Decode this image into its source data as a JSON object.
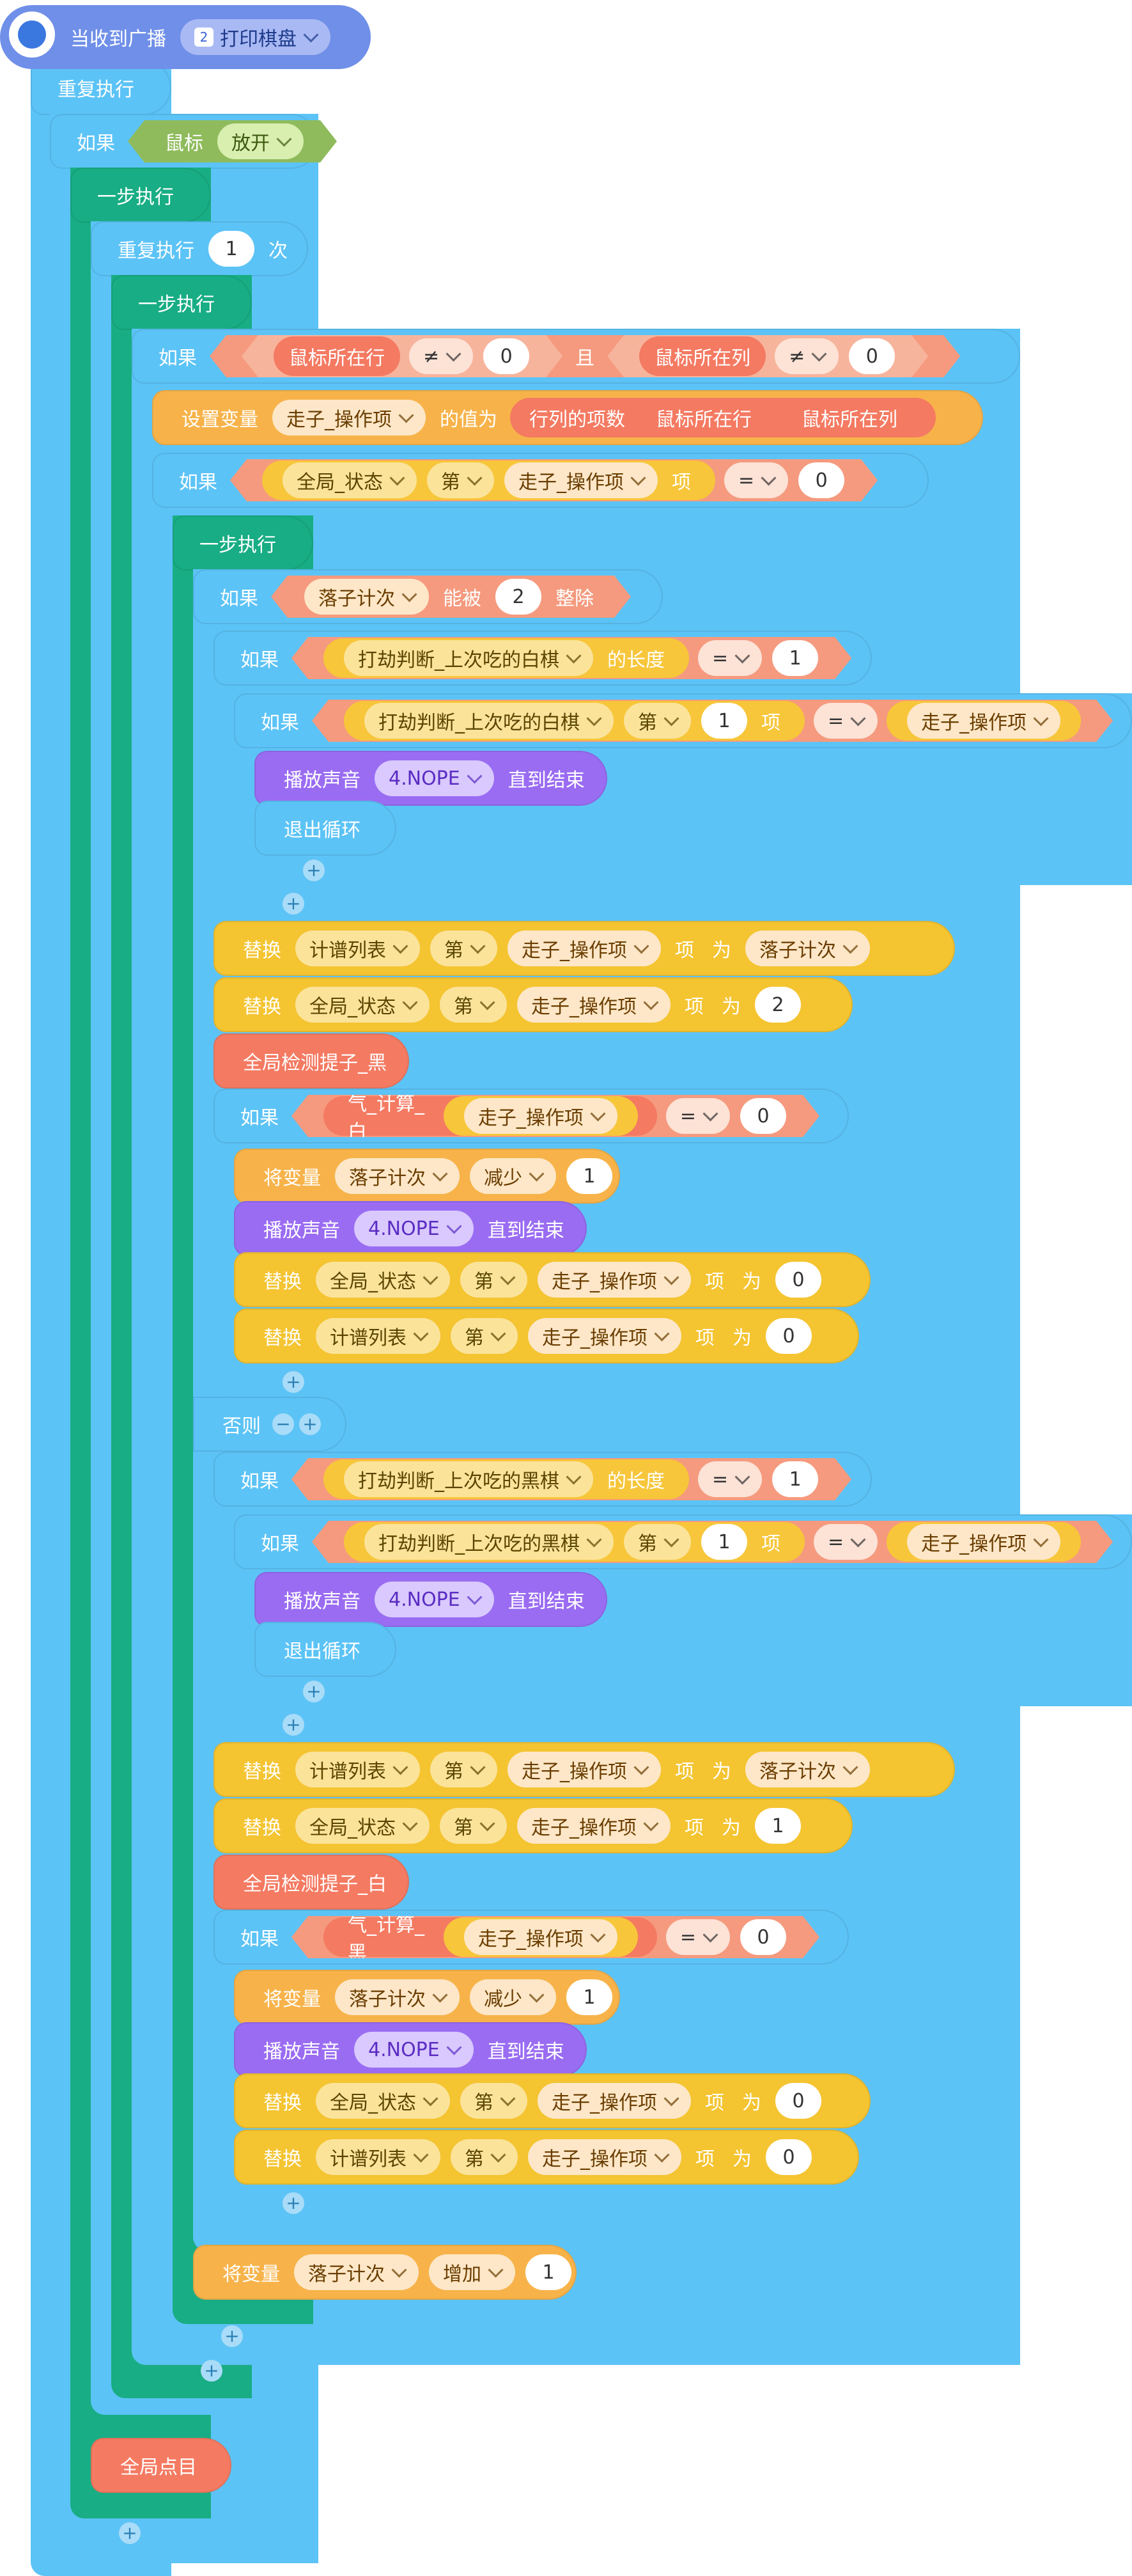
{
  "hat": {
    "label": "当收到广播",
    "message_icon": "2",
    "message": "打印棋盘"
  },
  "forever": {
    "label": "重复执行"
  },
  "if_mouse": {
    "if": "如果",
    "mouse": "鼠标",
    "state": "放开"
  },
  "step1": {
    "label": "一步执行"
  },
  "repeat": {
    "label": "重复执行",
    "count": "1",
    "unit": "次"
  },
  "step2": {
    "label": "一步执行"
  },
  "if_pos": {
    "if": "如果",
    "a": "鼠标所在行",
    "op": "≠",
    "v": "0",
    "and": "且",
    "b": "鼠标所在列",
    "op2": "≠",
    "v2": "0"
  },
  "set_var": {
    "label": "设置变量",
    "var": "走子_操作项",
    "to": "的值为",
    "fn": "行列的项数",
    "a": "鼠标所在行",
    "b": "鼠标所在列"
  },
  "if_state": {
    "if": "如果",
    "list": "全局_状态",
    "nth": "第",
    "item": "走子_操作项",
    "xiang": "项",
    "op": "=",
    "v": "0"
  },
  "step3": {
    "label": "一步执行"
  },
  "if_div": {
    "if": "如果",
    "var": "落子计次",
    "can": "能被",
    "n": "2",
    "div": "整除"
  },
  "white_len": {
    "if": "如果",
    "list": "打劫判断_上次吃的白棋",
    "len": "的长度",
    "op": "=",
    "v": "1"
  },
  "white_item": {
    "if": "如果",
    "list": "打劫判断_上次吃的白棋",
    "nth": "第",
    "n": "1",
    "xiang": "项",
    "op": "=",
    "var": "走子_操作项"
  },
  "sound1": {
    "label": "播放声音",
    "sound": "4.NOPE",
    "until": "直到结束"
  },
  "break1": {
    "label": "退出循环"
  },
  "replace1": {
    "label": "替换",
    "list": "计谱列表",
    "nth": "第",
    "item": "走子_操作项",
    "xiang": "项",
    "wei": "为",
    "val": "落子计次"
  },
  "replace2": {
    "label": "替换",
    "list": "全局_状态",
    "nth": "第",
    "item": "走子_操作项",
    "xiang": "项",
    "wei": "为",
    "val": "2"
  },
  "detect_black": {
    "label": "全局检测提子_黑"
  },
  "qi_white": {
    "if": "如果",
    "fn": "气_计算_白",
    "arg": "走子_操作项",
    "op": "=",
    "v": "0"
  },
  "dec1": {
    "label": "将变量",
    "var": "落子计次",
    "mode": "减少",
    "v": "1"
  },
  "sound2": {
    "label": "播放声音",
    "sound": "4.NOPE",
    "until": "直到结束"
  },
  "replace3": {
    "label": "替换",
    "list": "全局_状态",
    "nth": "第",
    "item": "走子_操作项",
    "xiang": "项",
    "wei": "为",
    "val": "0"
  },
  "replace4": {
    "label": "替换",
    "list": "计谱列表",
    "nth": "第",
    "item": "走子_操作项",
    "xiang": "项",
    "wei": "为",
    "val": "0"
  },
  "else": {
    "label": "否则",
    "minus": "−",
    "plus": "+"
  },
  "black_len": {
    "if": "如果",
    "list": "打劫判断_上次吃的黑棋",
    "len": "的长度",
    "op": "=",
    "v": "1"
  },
  "black_item": {
    "if": "如果",
    "list": "打劫判断_上次吃的黑棋",
    "nth": "第",
    "n": "1",
    "xiang": "项",
    "op": "=",
    "var": "走子_操作项"
  },
  "sound3": {
    "label": "播放声音",
    "sound": "4.NOPE",
    "until": "直到结束"
  },
  "break2": {
    "label": "退出循环"
  },
  "replace5": {
    "label": "替换",
    "list": "计谱列表",
    "nth": "第",
    "item": "走子_操作项",
    "xiang": "项",
    "wei": "为",
    "val": "落子计次"
  },
  "replace6": {
    "label": "替换",
    "list": "全局_状态",
    "nth": "第",
    "item": "走子_操作项",
    "xiang": "项",
    "wei": "为",
    "val": "1"
  },
  "detect_white": {
    "label": "全局检测提子_白"
  },
  "qi_black": {
    "if": "如果",
    "fn": "气_计算_黑",
    "arg": "走子_操作项",
    "op": "=",
    "v": "0"
  },
  "dec2": {
    "label": "将变量",
    "var": "落子计次",
    "mode": "减少",
    "v": "1"
  },
  "sound4": {
    "label": "播放声音",
    "sound": "4.NOPE",
    "until": "直到结束"
  },
  "replace7": {
    "label": "替换",
    "list": "全局_状态",
    "nth": "第",
    "item": "走子_操作项",
    "xiang": "项",
    "wei": "为",
    "val": "0"
  },
  "replace8": {
    "label": "替换",
    "list": "计谱列表",
    "nth": "第",
    "item": "走子_操作项",
    "xiang": "项",
    "wei": "为",
    "val": "0"
  },
  "inc": {
    "label": "将变量",
    "var": "落子计次",
    "mode": "增加",
    "v": "1"
  },
  "all_points": {
    "label": "全局点目"
  },
  "plus_symbol": "+",
  "colors": {
    "control": "#5cc3f6",
    "step": "#18ad84",
    "event": "#6f8fe8",
    "variable": "#f7b34a",
    "list": "#f4c431",
    "function": "#f47a62",
    "sound": "#9a6cf2"
  }
}
